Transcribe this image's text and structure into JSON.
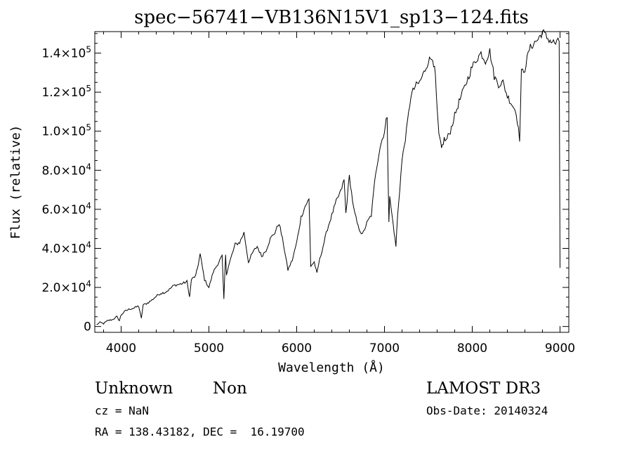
{
  "chart_data": {
    "type": "line",
    "title": "spec−56741−VB136N15V1_sp13−124.fits",
    "xlabel": "Wavelength (Å)",
    "ylabel": "Flux (relative)",
    "xlim": [
      3700,
      9100
    ],
    "ylim": [
      -3000,
      151000
    ],
    "x_ticks": [
      {
        "value": 4000,
        "label": "4000"
      },
      {
        "value": 5000,
        "label": "5000"
      },
      {
        "value": 6000,
        "label": "6000"
      },
      {
        "value": 7000,
        "label": "7000"
      },
      {
        "value": 8000,
        "label": "8000"
      },
      {
        "value": 9000,
        "label": "9000"
      }
    ],
    "y_ticks": [
      {
        "value": 0,
        "mant": "0",
        "exp": ""
      },
      {
        "value": 20000,
        "mant": "2.0×10",
        "exp": "4"
      },
      {
        "value": 40000,
        "mant": "4.0×10",
        "exp": "4"
      },
      {
        "value": 60000,
        "mant": "6.0×10",
        "exp": "4"
      },
      {
        "value": 80000,
        "mant": "8.0×10",
        "exp": "4"
      },
      {
        "value": 100000,
        "mant": "1.0×10",
        "exp": "5"
      },
      {
        "value": 120000,
        "mant": "1.2×10",
        "exp": "5"
      },
      {
        "value": 140000,
        "mant": "1.4×10",
        "exp": "5"
      }
    ],
    "series": [
      {
        "name": "flux",
        "x": [
          3720,
          3760,
          3800,
          3850,
          3900,
          3950,
          3980,
          4000,
          4050,
          4100,
          4150,
          4200,
          4230,
          4250,
          4300,
          4350,
          4400,
          4450,
          4500,
          4550,
          4600,
          4650,
          4700,
          4750,
          4780,
          4800,
          4850,
          4870,
          4900,
          4950,
          5000,
          5050,
          5100,
          5150,
          5170,
          5190,
          5200,
          5250,
          5300,
          5350,
          5400,
          5450,
          5480,
          5500,
          5550,
          5600,
          5650,
          5700,
          5750,
          5800,
          5850,
          5900,
          5950,
          6000,
          6050,
          6100,
          6140,
          6160,
          6200,
          6230,
          6250,
          6300,
          6350,
          6400,
          6450,
          6500,
          6540,
          6560,
          6600,
          6650,
          6700,
          6750,
          6800,
          6850,
          6900,
          6950,
          7000,
          7030,
          7050,
          7060,
          7100,
          7130,
          7150,
          7200,
          7250,
          7300,
          7350,
          7400,
          7450,
          7500,
          7550,
          7580,
          7600,
          7620,
          7650,
          7680,
          7700,
          7750,
          7800,
          7850,
          7900,
          7950,
          8000,
          8050,
          8100,
          8150,
          8200,
          8250,
          8300,
          8350,
          8400,
          8450,
          8500,
          8540,
          8560,
          8600,
          8650,
          8700,
          8750,
          8800,
          8850,
          8900,
          8950,
          8990,
          9000
        ],
        "y": [
          1000,
          2000,
          1500,
          3000,
          3500,
          5000,
          3000,
          6000,
          8000,
          9000,
          9500,
          10500,
          4000,
          11000,
          12000,
          13500,
          15500,
          17000,
          17500,
          19000,
          21000,
          21500,
          22000,
          23000,
          15000,
          24000,
          26000,
          30000,
          37000,
          24000,
          20000,
          28000,
          32000,
          36000,
          14000,
          37000,
          27000,
          35000,
          42000,
          43000,
          48000,
          33000,
          36000,
          38000,
          41000,
          36000,
          39000,
          45000,
          48000,
          53000,
          42000,
          29000,
          34000,
          43000,
          56000,
          62000,
          65000,
          31000,
          33000,
          27000,
          32000,
          41000,
          50000,
          57000,
          64000,
          69000,
          75000,
          58000,
          77000,
          60000,
          51000,
          47000,
          53000,
          57000,
          79000,
          92000,
          100000,
          108000,
          54000,
          66000,
          52000,
          41000,
          57000,
          85000,
          100000,
          118000,
          123000,
          125000,
          130000,
          136000,
          138000,
          128000,
          110000,
          98000,
          91000,
          96000,
          95000,
          100000,
          108000,
          115000,
          121000,
          127000,
          133000,
          137000,
          140000,
          136000,
          141000,
          128000,
          124000,
          125000,
          118000,
          114000,
          110000,
          96000,
          130000,
          132000,
          142000,
          145000,
          147000,
          151000,
          148000,
          146000,
          145000,
          146000,
          30000
        ]
      }
    ]
  },
  "footer": {
    "object_class": "Unknown",
    "subclass": "Non",
    "cz": "cz = NaN",
    "radec": "RA = 138.43182, DEC =  16.19700",
    "survey": "LAMOST DR3",
    "obs_date": "Obs-Date: 20140324"
  }
}
